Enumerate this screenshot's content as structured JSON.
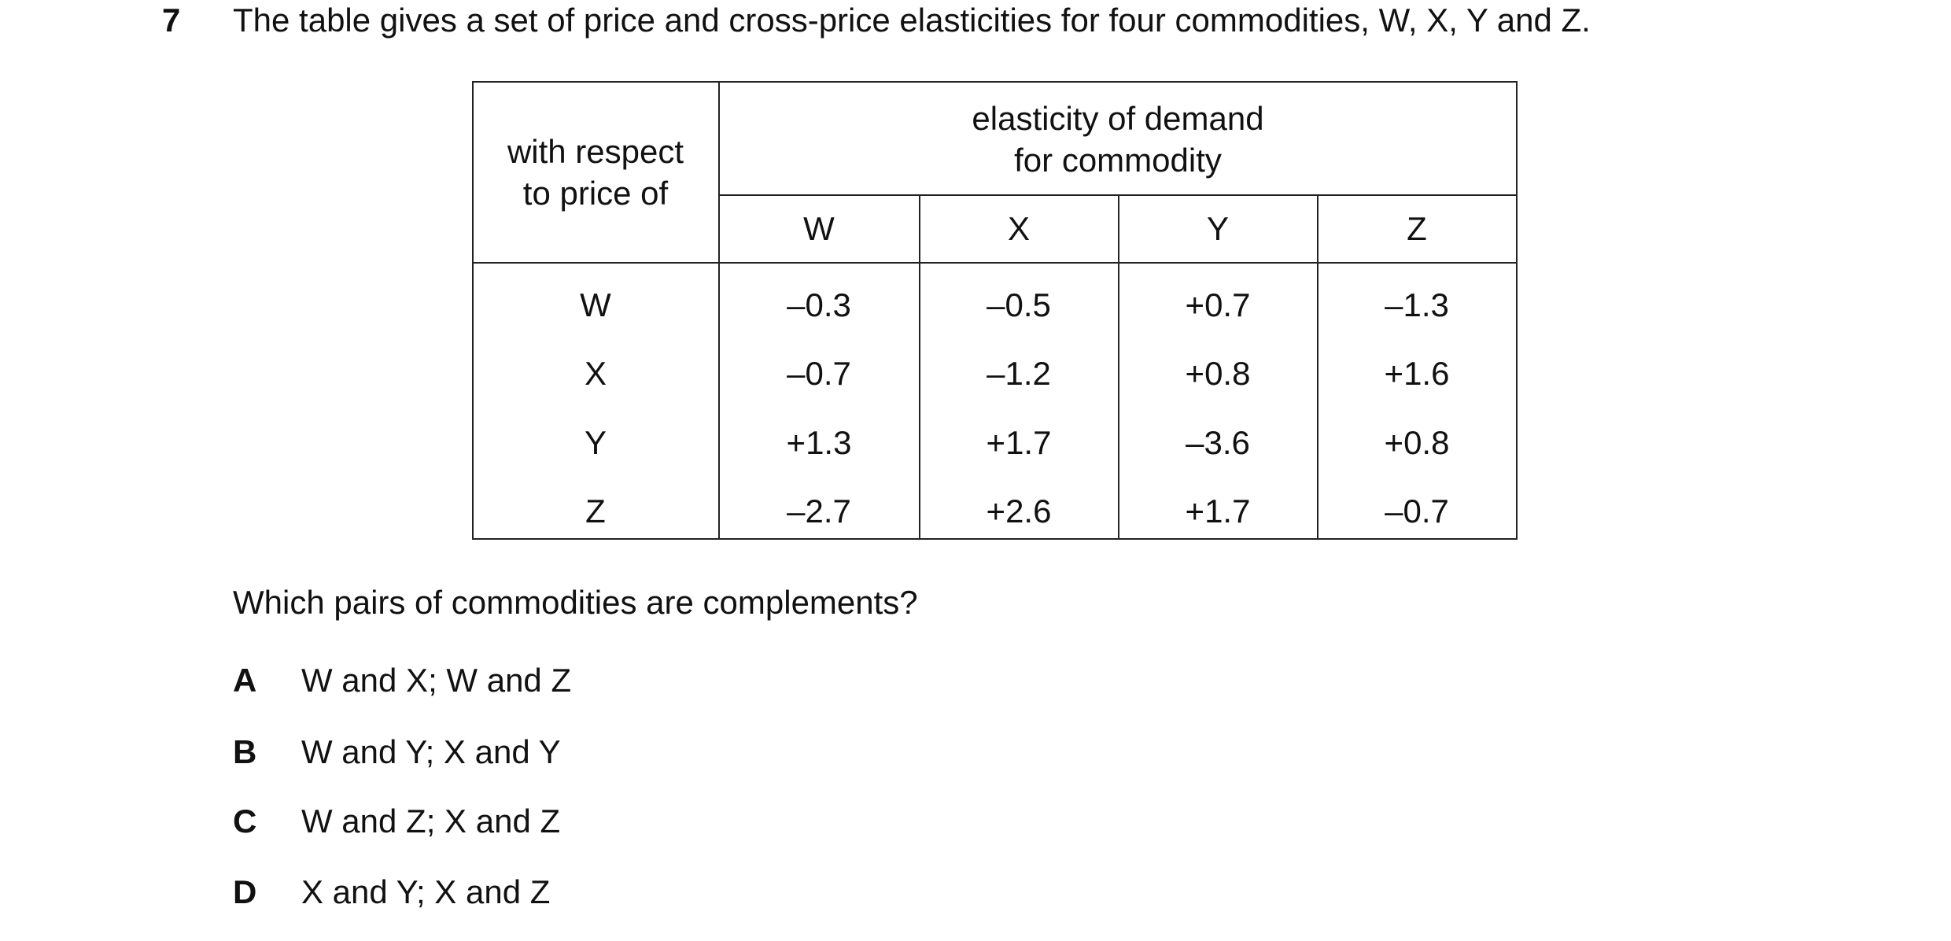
{
  "question": {
    "number": "7",
    "text": "The table gives a set of price and cross-price elasticities for four commodities, W, X, Y and Z."
  },
  "table": {
    "corner": [
      "with respect",
      "to price of"
    ],
    "header": [
      "elasticity of demand",
      "for commodity"
    ],
    "columns": [
      "W",
      "X",
      "Y",
      "Z"
    ],
    "rows": [
      {
        "label": "W",
        "values": [
          "–0.3",
          "–0.5",
          "+0.7",
          "–1.3"
        ]
      },
      {
        "label": "X",
        "values": [
          "–0.7",
          "–1.2",
          "+0.8",
          "+1.6"
        ]
      },
      {
        "label": "Y",
        "values": [
          "+1.3",
          "+1.7",
          "–3.6",
          "+0.8"
        ]
      },
      {
        "label": "Z",
        "values": [
          "–2.7",
          "+2.6",
          "+1.7",
          "–0.7"
        ]
      }
    ]
  },
  "prompt": "Which pairs of commodities are complements?",
  "options": [
    {
      "letter": "A",
      "text": "W and X; W and Z"
    },
    {
      "letter": "B",
      "text": "W and Y; X and Y"
    },
    {
      "letter": "C",
      "text": "W and Z; X and Z"
    },
    {
      "letter": "D",
      "text": "X and Y; X and Z"
    }
  ]
}
